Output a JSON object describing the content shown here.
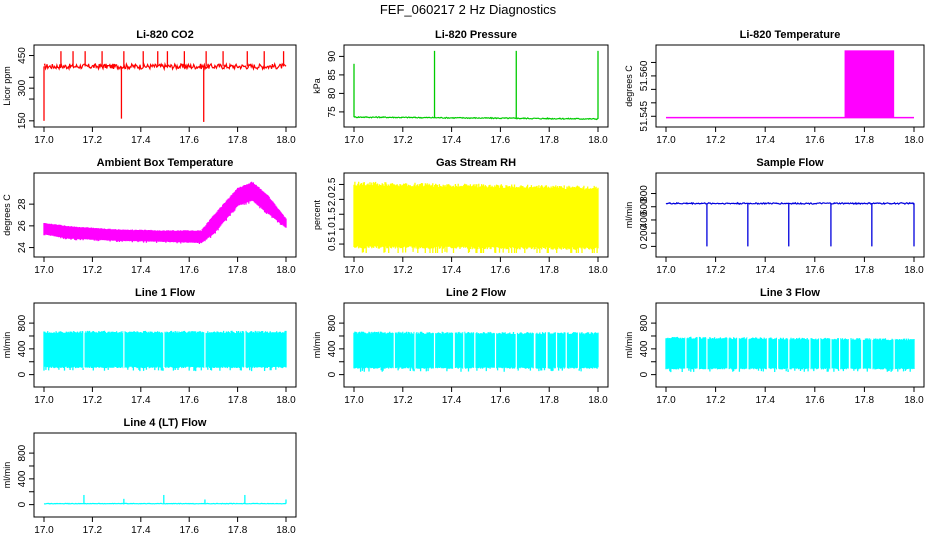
{
  "figure": {
    "title": "FEF_060217  2 Hz Diagnostics"
  },
  "colors": {
    "red": "#ff0000",
    "green": "#00cc00",
    "magenta": "#ff00ff",
    "yellow": "#ffff00",
    "blue": "#0000dd",
    "cyan": "#00ffff",
    "axis": "#000000"
  },
  "chart_data": [
    {
      "id": "co2",
      "type": "line",
      "title": "Li-820 CO2",
      "ylabel": "Licor ppm",
      "color": "red",
      "xlim": [
        17.0,
        18.0
      ],
      "xticks": [
        "17.0",
        "17.2",
        "17.4",
        "17.6",
        "17.8",
        "18.0"
      ],
      "ylim": [
        140,
        480
      ],
      "yticks": [
        "150",
        "300",
        "450"
      ],
      "yticks_minor": [
        "250",
        "350"
      ],
      "baseline": 400,
      "noise": 12,
      "spikes": [
        {
          "x": 17.0,
          "y": 150
        },
        {
          "x": 17.07,
          "y": 470
        },
        {
          "x": 17.12,
          "y": 470
        },
        {
          "x": 17.17,
          "y": 470
        },
        {
          "x": 17.24,
          "y": 470
        },
        {
          "x": 17.32,
          "y": 160
        },
        {
          "x": 17.33,
          "y": 470
        },
        {
          "x": 17.41,
          "y": 470
        },
        {
          "x": 17.47,
          "y": 470
        },
        {
          "x": 17.51,
          "y": 470
        },
        {
          "x": 17.58,
          "y": 470
        },
        {
          "x": 17.66,
          "y": 145
        },
        {
          "x": 17.67,
          "y": 470
        },
        {
          "x": 17.74,
          "y": 470
        },
        {
          "x": 17.84,
          "y": 470
        },
        {
          "x": 17.91,
          "y": 470
        },
        {
          "x": 17.99,
          "y": 470
        }
      ]
    },
    {
      "id": "pressure",
      "type": "line",
      "title": "Li-820 Pressure",
      "ylabel": "kPa",
      "color": "green",
      "xlim": [
        17.0,
        18.0
      ],
      "xticks": [
        "17.0",
        "17.2",
        "17.4",
        "17.6",
        "17.8",
        "18.0"
      ],
      "ylim": [
        72,
        92
      ],
      "yticks": [
        "75",
        "80",
        "85",
        "90"
      ],
      "baseline_start": 73.6,
      "baseline_end": 73.1,
      "noise": 0.15,
      "spikes": [
        {
          "x": 17.0,
          "y": 88
        },
        {
          "x": 17.33,
          "y": 91.5
        },
        {
          "x": 17.665,
          "y": 91.5
        },
        {
          "x": 18.0,
          "y": 91.5
        }
      ]
    },
    {
      "id": "temperature",
      "type": "area",
      "title": "Li-820 Temperature",
      "ylabel": "degrees C",
      "color": "magenta",
      "xlim": [
        17.0,
        18.0
      ],
      "xticks": [
        "17.0",
        "17.2",
        "17.4",
        "17.6",
        "17.8",
        "18.0"
      ],
      "ylim": [
        51.5425,
        51.57
      ],
      "yticks": [
        "51.545",
        "51.560"
      ],
      "yticks_minor": [
        "51.550",
        "51.555",
        "51.565"
      ],
      "baseline": 51.5445,
      "block": {
        "x_start": 17.72,
        "x_end": 17.92,
        "y_low": 51.5445,
        "y_high": 51.5695
      }
    },
    {
      "id": "boxtemp",
      "type": "band",
      "title": "Ambient Box Temperature",
      "ylabel": "degrees C",
      "color": "magenta",
      "xlim": [
        17.0,
        18.0
      ],
      "xticks": [
        "17.0",
        "17.2",
        "17.4",
        "17.6",
        "17.8",
        "18.0"
      ],
      "ylim": [
        23.5,
        30.5
      ],
      "yticks": [
        "24",
        "26",
        "28"
      ],
      "upper": [
        [
          17.0,
          26.3
        ],
        [
          17.1,
          26.0
        ],
        [
          17.3,
          25.7
        ],
        [
          17.5,
          25.6
        ],
        [
          17.65,
          25.6
        ],
        [
          17.7,
          27.0
        ],
        [
          17.8,
          29.5
        ],
        [
          17.86,
          30.1
        ],
        [
          17.92,
          29.0
        ],
        [
          18.0,
          26.7
        ]
      ],
      "lower": [
        [
          17.0,
          25.2
        ],
        [
          17.1,
          24.8
        ],
        [
          17.3,
          24.6
        ],
        [
          17.5,
          24.5
        ],
        [
          17.65,
          24.4
        ],
        [
          17.7,
          25.2
        ],
        [
          17.8,
          27.8
        ],
        [
          17.86,
          28.3
        ],
        [
          17.92,
          27.2
        ],
        [
          18.0,
          25.8
        ]
      ]
    },
    {
      "id": "rh",
      "type": "band",
      "title": "Gas Stream RH",
      "ylabel": "percent",
      "color": "yellow",
      "xlim": [
        17.0,
        18.0
      ],
      "xticks": [
        "17.0",
        "17.2",
        "17.4",
        "17.6",
        "17.8",
        "18.0"
      ],
      "ylim": [
        0.2,
        2.75
      ],
      "yticks": [
        "0.5",
        "1.0",
        "1.5",
        "2.0",
        "2.5"
      ],
      "upper": [
        [
          17.0,
          2.6
        ],
        [
          18.0,
          2.45
        ]
      ],
      "lower": [
        [
          17.0,
          0.35
        ],
        [
          18.0,
          0.3
        ]
      ]
    },
    {
      "id": "sampleflow",
      "type": "line",
      "title": "Sample Flow",
      "ylabel": "ml/min",
      "color": "blue",
      "xlim": [
        17.0,
        18.0
      ],
      "xticks": [
        "17.0",
        "17.2",
        "17.4",
        "17.6",
        "17.8",
        "18.0"
      ],
      "ylim": [
        -100,
        1050
      ],
      "yticks": [
        "0",
        "200",
        "400",
        "600",
        "800"
      ],
      "baseline": 650,
      "noise": 10,
      "drops": [
        {
          "x": 17.165,
          "y": 0
        },
        {
          "x": 17.33,
          "y": 0
        },
        {
          "x": 17.495,
          "y": 0
        },
        {
          "x": 17.665,
          "y": 0
        },
        {
          "x": 17.83,
          "y": 0
        },
        {
          "x": 18.0,
          "y": 0
        }
      ]
    },
    {
      "id": "line1",
      "type": "band",
      "title": "Line 1 Flow",
      "ylabel": "ml/min",
      "color": "cyan",
      "xlim": [
        17.0,
        18.0
      ],
      "xticks": [
        "17.0",
        "17.2",
        "17.4",
        "17.6",
        "17.8",
        "18.0"
      ],
      "ylim": [
        -130,
        1050
      ],
      "yticks": [
        "0",
        "400",
        "800"
      ],
      "yticks_minor": [
        "200",
        "600"
      ],
      "upper": [
        [
          17.0,
          680
        ],
        [
          18.0,
          680
        ]
      ],
      "lower": [
        [
          17.0,
          100
        ],
        [
          18.0,
          100
        ]
      ],
      "gaps": [
        17.165,
        17.33,
        17.495,
        17.665,
        17.83
      ]
    },
    {
      "id": "line2",
      "type": "band",
      "title": "Line 2 Flow",
      "ylabel": "ml/min",
      "color": "cyan",
      "xlim": [
        17.0,
        18.0
      ],
      "xticks": [
        "17.0",
        "17.2",
        "17.4",
        "17.6",
        "17.8",
        "18.0"
      ],
      "ylim": [
        -130,
        1050
      ],
      "yticks": [
        "0",
        "400",
        "800"
      ],
      "yticks_minor": [
        "200",
        "600"
      ],
      "upper": [
        [
          17.0,
          670
        ],
        [
          18.0,
          660
        ]
      ],
      "lower": [
        [
          17.0,
          90
        ],
        [
          18.0,
          90
        ]
      ],
      "gaps": [
        17.165,
        17.25,
        17.33,
        17.41,
        17.45,
        17.495,
        17.58,
        17.665,
        17.74,
        17.79,
        17.83,
        17.87,
        17.92
      ]
    },
    {
      "id": "line3",
      "type": "band",
      "title": "Line 3 Flow",
      "ylabel": "ml/min",
      "color": "cyan",
      "xlim": [
        17.0,
        18.0
      ],
      "xticks": [
        "17.0",
        "17.2",
        "17.4",
        "17.6",
        "17.8",
        "18.0"
      ],
      "ylim": [
        -130,
        1050
      ],
      "yticks": [
        "0",
        "400",
        "800"
      ],
      "yticks_minor": [
        "200",
        "600"
      ],
      "upper": [
        [
          17.0,
          590
        ],
        [
          18.0,
          560
        ]
      ],
      "lower": [
        [
          17.0,
          80
        ],
        [
          18.0,
          80
        ]
      ],
      "gaps": [
        17.08,
        17.13,
        17.165,
        17.25,
        17.29,
        17.33,
        17.41,
        17.45,
        17.495,
        17.58,
        17.62,
        17.665,
        17.7,
        17.74,
        17.79,
        17.83,
        17.92
      ]
    },
    {
      "id": "line4",
      "type": "line",
      "title": "Line 4 (LT) Flow",
      "ylabel": "ml/min",
      "color": "cyan",
      "xlim": [
        17.0,
        18.0
      ],
      "xticks": [
        "17.0",
        "17.2",
        "17.4",
        "17.6",
        "17.8",
        "18.0"
      ],
      "ylim": [
        -130,
        1050
      ],
      "yticks": [
        "0",
        "400",
        "800"
      ],
      "yticks_minor": [
        "200",
        "600"
      ],
      "baseline": 15,
      "noise": 4,
      "spikes": [
        {
          "x": 17.165,
          "y": 150
        },
        {
          "x": 17.33,
          "y": 90
        },
        {
          "x": 17.495,
          "y": 150
        },
        {
          "x": 17.665,
          "y": 80
        },
        {
          "x": 17.83,
          "y": 150
        },
        {
          "x": 18.0,
          "y": 80
        }
      ]
    }
  ]
}
